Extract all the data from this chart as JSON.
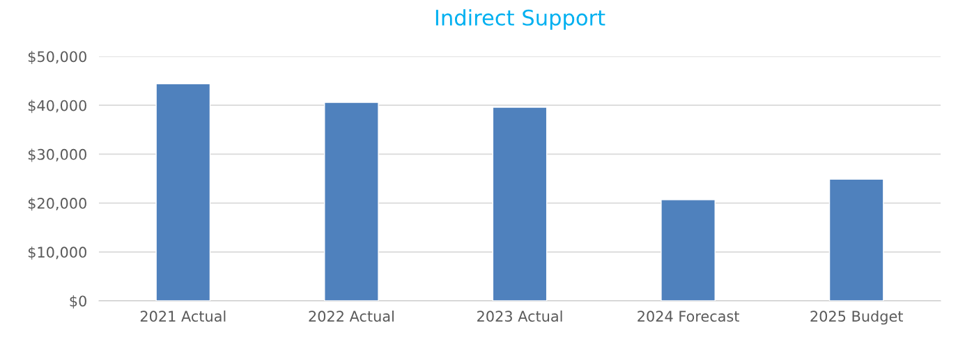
{
  "chart_data": {
    "type": "bar",
    "title": "Indirect Support",
    "categories": [
      "2021 Actual",
      "2022 Actual",
      "2023 Actual",
      "2024 Forecast",
      "2025 Budget"
    ],
    "values": [
      44400,
      40600,
      39600,
      20700,
      24900
    ],
    "color": "#4f81bd",
    "ylim": [
      0,
      50000
    ],
    "yticks": [
      {
        "value": 0,
        "label": "$0"
      },
      {
        "value": 10000,
        "label": "$10,000"
      },
      {
        "value": 20000,
        "label": "$20,000"
      },
      {
        "value": 30000,
        "label": "$30,000"
      },
      {
        "value": 40000,
        "label": "$40,000"
      },
      {
        "value": 50000,
        "label": "$50,000"
      }
    ],
    "grid": "y",
    "legend": false
  }
}
